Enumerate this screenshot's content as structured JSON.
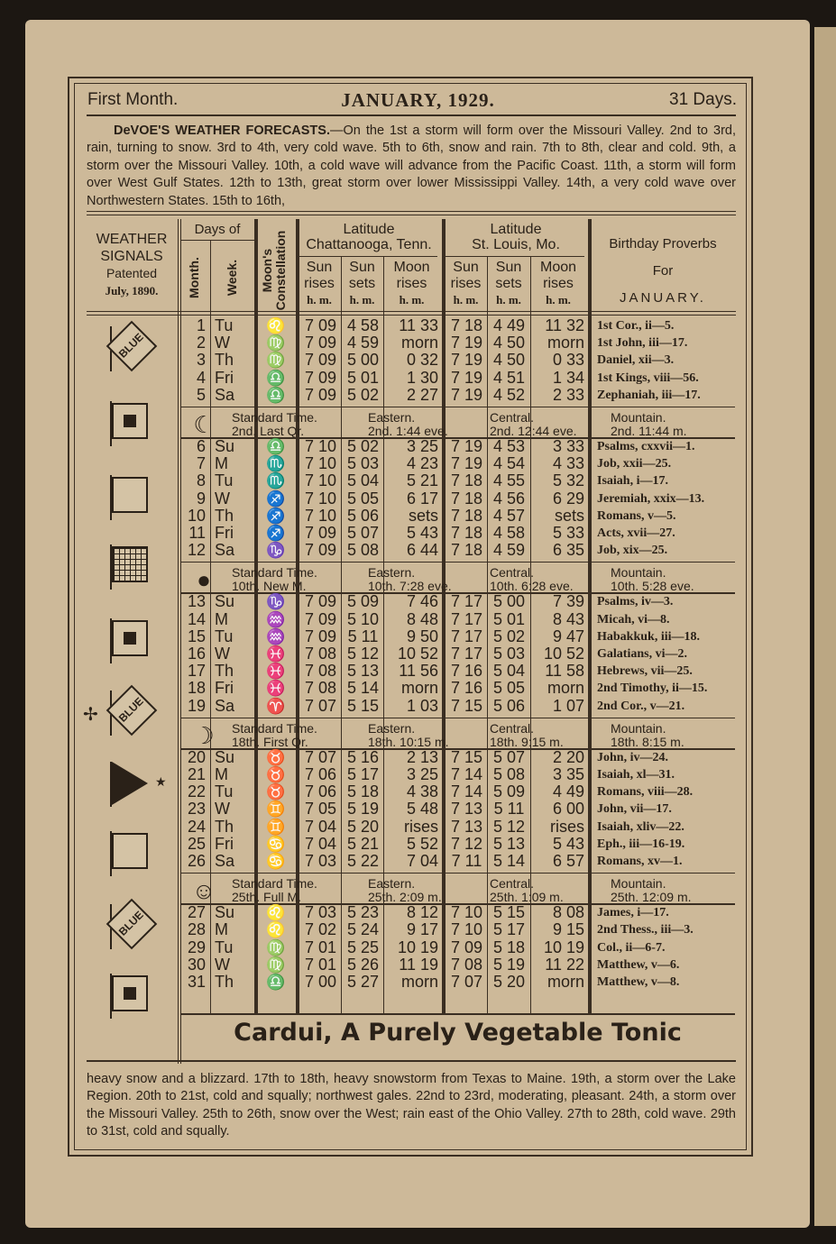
{
  "header": {
    "left": "First Month.",
    "title": "JANUARY, 1929.",
    "right": "31 Days."
  },
  "forecast_top": {
    "lead": "DeVOE'S WEATHER FORECASTS.",
    "text": "—On the 1st a storm will form over the Missouri Valley. 2nd to 3rd, rain, turning to snow. 3rd to 4th, very cold wave. 5th to 6th, snow and rain. 7th to 8th, clear and cold. 9th, a storm over the Missouri Valley. 10th, a cold wave will advance from the Pacific Coast. 11th, a storm will form over West Gulf States. 12th to 13th, great storm over lower Mississippi Valley. 14th, a very cold wave over Northwestern States. 15th to 16th,"
  },
  "columns": {
    "signals": [
      "WEATHER",
      "SIGNALS",
      "Patented",
      "July, 1890."
    ],
    "days_of": "Days of",
    "month": "Month.",
    "week": "Week.",
    "moons": "Moon's",
    "constellation": "Constellation",
    "lat1": [
      "Latitude",
      "Chattanooga, Tenn."
    ],
    "lat2": [
      "Latitude",
      "St. Louis, Mo."
    ],
    "sun_rises": [
      "Sun",
      "rises"
    ],
    "sun_sets": [
      "Sun",
      "sets"
    ],
    "moon_rises": [
      "Moon",
      "rises"
    ],
    "hm": "h. m.",
    "proverbs": [
      "Birthday Proverbs",
      "For",
      "JANUARY."
    ]
  },
  "signal_flags": [
    {
      "type": "blue",
      "label": "BLUE"
    },
    {
      "type": "black-center"
    },
    {
      "type": "white"
    },
    {
      "type": "checkered"
    },
    {
      "type": "black-center"
    },
    {
      "type": "blue",
      "label": "BLUE",
      "mark": "✢"
    },
    {
      "type": "triangle-pennant",
      "mark": "★"
    },
    {
      "type": "white"
    },
    {
      "type": "blue",
      "label": "BLUE"
    },
    {
      "type": "black-center"
    }
  ],
  "rows": [
    [
      "1",
      "Tu",
      "leo",
      "7 09",
      "4 58",
      "11 33",
      "7 18",
      "4 49",
      "11 32",
      "1st Cor., ii—5."
    ],
    [
      "2",
      "W",
      "virgo",
      "7 09",
      "4 59",
      "morn",
      "7 19",
      "4 50",
      "morn",
      "1st John, iii—17."
    ],
    [
      "3",
      "Th",
      "virgo",
      "7 09",
      "5 00",
      "0 32",
      "7 19",
      "4 50",
      "0 33",
      "Daniel, xii—3."
    ],
    [
      "4",
      "Fri",
      "libra",
      "7 09",
      "5 01",
      "1 30",
      "7 19",
      "4 51",
      "1 34",
      "1st Kings, viii—56."
    ],
    [
      "5",
      "Sa",
      "libra",
      "7 09",
      "5 02",
      "2 27",
      "7 19",
      "4 52",
      "2 33",
      "Zephaniah, iii—17."
    ],
    [
      "6",
      "Su",
      "libra",
      "7 10",
      "5 02",
      "3 25",
      "7 19",
      "4 53",
      "3 33",
      "Psalms, cxxvii—1."
    ],
    [
      "7",
      "M",
      "scorpio",
      "7 10",
      "5 03",
      "4 23",
      "7 19",
      "4 54",
      "4 33",
      "Job, xxii—25."
    ],
    [
      "8",
      "Tu",
      "scorpio",
      "7 10",
      "5 04",
      "5 21",
      "7 18",
      "4 55",
      "5 32",
      "Isaiah, i—17."
    ],
    [
      "9",
      "W",
      "sagittarius",
      "7 10",
      "5 05",
      "6 17",
      "7 18",
      "4 56",
      "6 29",
      "Jeremiah, xxix—13."
    ],
    [
      "10",
      "Th",
      "sagittarius",
      "7 10",
      "5 06",
      "sets",
      "7 18",
      "4 57",
      "sets",
      "Romans, v—5."
    ],
    [
      "11",
      "Fri",
      "sagittarius",
      "7 09",
      "5 07",
      "5 43",
      "7 18",
      "4 58",
      "5 33",
      "Acts, xvii—27."
    ],
    [
      "12",
      "Sa",
      "capricorn",
      "7 09",
      "5 08",
      "6 44",
      "7 18",
      "4 59",
      "6 35",
      "Job, xix—25."
    ],
    [
      "13",
      "Su",
      "capricorn",
      "7 09",
      "5 09",
      "7 46",
      "7 17",
      "5 00",
      "7 39",
      "Psalms, iv—3."
    ],
    [
      "14",
      "M",
      "aquarius",
      "7 09",
      "5 10",
      "8 48",
      "7 17",
      "5 01",
      "8 43",
      "Micah, vi—8."
    ],
    [
      "15",
      "Tu",
      "aquarius",
      "7 09",
      "5 11",
      "9 50",
      "7 17",
      "5 02",
      "9 47",
      "Habakkuk, iii—18."
    ],
    [
      "16",
      "W",
      "pisces",
      "7 08",
      "5 12",
      "10 52",
      "7 17",
      "5 03",
      "10 52",
      "Galatians, vi—2."
    ],
    [
      "17",
      "Th",
      "pisces",
      "7 08",
      "5 13",
      "11 56",
      "7 16",
      "5 04",
      "11 58",
      "Hebrews, vii—25."
    ],
    [
      "18",
      "Fri",
      "pisces",
      "7 08",
      "5 14",
      "morn",
      "7 16",
      "5 05",
      "morn",
      "2nd Timothy, ii—15."
    ],
    [
      "19",
      "Sa",
      "aries",
      "7 07",
      "5 15",
      "1 03",
      "7 15",
      "5 06",
      "1 07",
      "2nd Cor., v—21."
    ],
    [
      "20",
      "Su",
      "taurus",
      "7 07",
      "5 16",
      "2 13",
      "7 15",
      "5 07",
      "2 20",
      "John, iv—24."
    ],
    [
      "21",
      "M",
      "taurus",
      "7 06",
      "5 17",
      "3 25",
      "7 14",
      "5 08",
      "3 35",
      "Isaiah, xl—31."
    ],
    [
      "22",
      "Tu",
      "taurus",
      "7 06",
      "5 18",
      "4 38",
      "7 14",
      "5 09",
      "4 49",
      "Romans, viii—28."
    ],
    [
      "23",
      "W",
      "gemini",
      "7 05",
      "5 19",
      "5 48",
      "7 13",
      "5 11",
      "6 00",
      "John, vii—17."
    ],
    [
      "24",
      "Th",
      "gemini",
      "7 04",
      "5 20",
      "rises",
      "7 13",
      "5 12",
      "rises",
      "Isaiah, xliv—22."
    ],
    [
      "25",
      "Fri",
      "cancer",
      "7 04",
      "5 21",
      "5 52",
      "7 12",
      "5 13",
      "5 43",
      "Eph., iii—16-19."
    ],
    [
      "26",
      "Sa",
      "cancer",
      "7 03",
      "5 22",
      "7 04",
      "7 11",
      "5 14",
      "6 57",
      "Romans, xv—1."
    ],
    [
      "27",
      "Su",
      "leo",
      "7 03",
      "5 23",
      "8 12",
      "7 10",
      "5 15",
      "8 08",
      "James, i—17."
    ],
    [
      "28",
      "M",
      "leo",
      "7 02",
      "5 24",
      "9 17",
      "7 10",
      "5 17",
      "9 15",
      "2nd Thess., iii—3."
    ],
    [
      "29",
      "Tu",
      "virgo",
      "7 01",
      "5 25",
      "10 19",
      "7 09",
      "5 18",
      "10 19",
      "Col., ii—6-7."
    ],
    [
      "30",
      "W",
      "virgo",
      "7 01",
      "5 26",
      "11 19",
      "7 08",
      "5 19",
      "11 22",
      "Matthew, v—6."
    ],
    [
      "31",
      "Th",
      "libra",
      "7 00",
      "5 27",
      "morn",
      "7 07",
      "5 20",
      "morn",
      "Matthew, v—8."
    ]
  ],
  "constellation_glyphs": {
    "aries": "♈",
    "taurus": "♉",
    "gemini": "♊",
    "cancer": "♋",
    "leo": "♌",
    "virgo": "♍",
    "libra": "♎",
    "scorpio": "♏",
    "sagittarius": "♐",
    "capricorn": "♑",
    "aquarius": "♒",
    "pisces": "♓"
  },
  "moon_phases": [
    {
      "after_row": 5,
      "icon": "last-quarter",
      "glyph": "☾",
      "std": "Standard Time.",
      "phase": "2nd.  Last Qr.",
      "eastern": "Eastern.",
      "eastern_t": "2nd.   1:44 eve.",
      "central": "Central.",
      "central_t": "2nd.   12:44 eve.",
      "mountain": "Mountain.",
      "mountain_t": "2nd.  11:44 m."
    },
    {
      "after_row": 12,
      "icon": "new-moon",
      "glyph": "●",
      "std": "Standard Time.",
      "phase": "10th.  New M.",
      "eastern": "Eastern.",
      "eastern_t": "10th.  7:28 eve.",
      "central": "Central.",
      "central_t": "10th.  6:28 eve.",
      "mountain": "Mountain.",
      "mountain_t": "10th.  5:28 eve."
    },
    {
      "after_row": 19,
      "icon": "first-quarter",
      "glyph": "☽",
      "std": "Standard Time.",
      "phase": "18th.  First Qr.",
      "eastern": "Eastern.",
      "eastern_t": "18th.  10:15 m.",
      "central": "Central.",
      "central_t": "18th.  9:15 m.",
      "mountain": "Mountain.",
      "mountain_t": "18th.  8:15 m."
    },
    {
      "after_row": 26,
      "icon": "full-moon",
      "glyph": "☺",
      "std": "Standard Time.",
      "phase": "25th.  Full M.",
      "eastern": "Eastern.",
      "eastern_t": "25th.  2:09 m.",
      "central": "Central.",
      "central_t": "25th.  1:09 m.",
      "mountain": "Mountain.",
      "mountain_t": "25th.  12:09 m."
    }
  ],
  "advert": "Cardui, A Purely Vegetable Tonic",
  "forecast_bottom": "heavy snow and a blizzard. 17th to 18th, heavy snowstorm from Texas to Maine. 19th, a storm over the Lake Region. 20th to 21st, cold and squally; northwest gales. 22nd to 23rd, moderating, pleasant. 24th, a storm over the Missouri Valley. 25th to 26th, snow over the West; rain east of the Ohio Valley. 27th to 28th, cold wave. 29th to 31st, cold and squally.",
  "colors": {
    "paper": "#cdb999",
    "ink": "#2a2118",
    "background": "#1c1712"
  }
}
